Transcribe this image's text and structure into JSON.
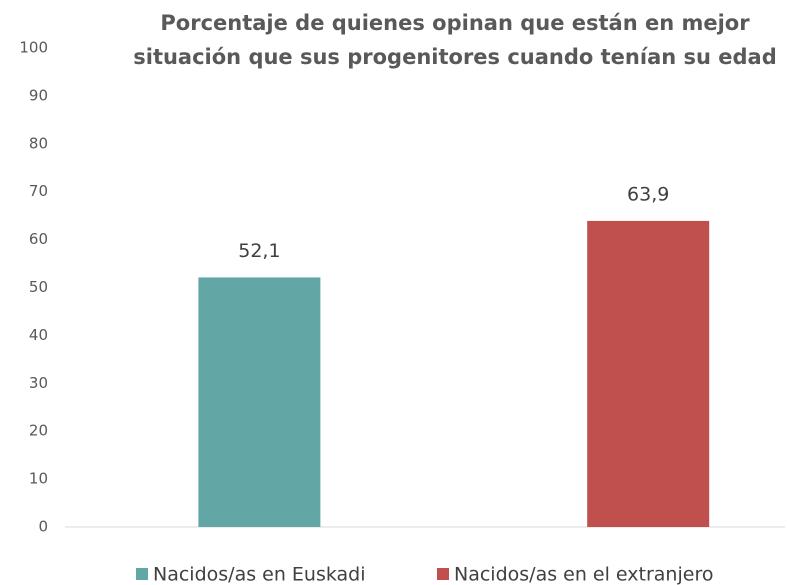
{
  "chart_data": {
    "type": "bar",
    "title": [
      "Porcentaje de quienes opinan que están en mejor",
      "situación que sus progenitores cuando tenían su edad"
    ],
    "categories": [
      null
    ],
    "series": [
      {
        "name": "Nacidos/as en Euskadi",
        "color": "#62a7a6",
        "values": [
          52.1
        ],
        "value_labels": [
          "52,1"
        ]
      },
      {
        "name": "Nacidos/as en el extranjero",
        "color": "#c0504d",
        "values": [
          63.9
        ],
        "value_labels": [
          "63,9"
        ]
      }
    ],
    "ylim": [
      0,
      100
    ],
    "yticks": [
      0,
      10,
      20,
      30,
      40,
      50,
      60,
      70,
      80,
      90,
      100
    ],
    "grid": false,
    "legend": "bottom"
  }
}
